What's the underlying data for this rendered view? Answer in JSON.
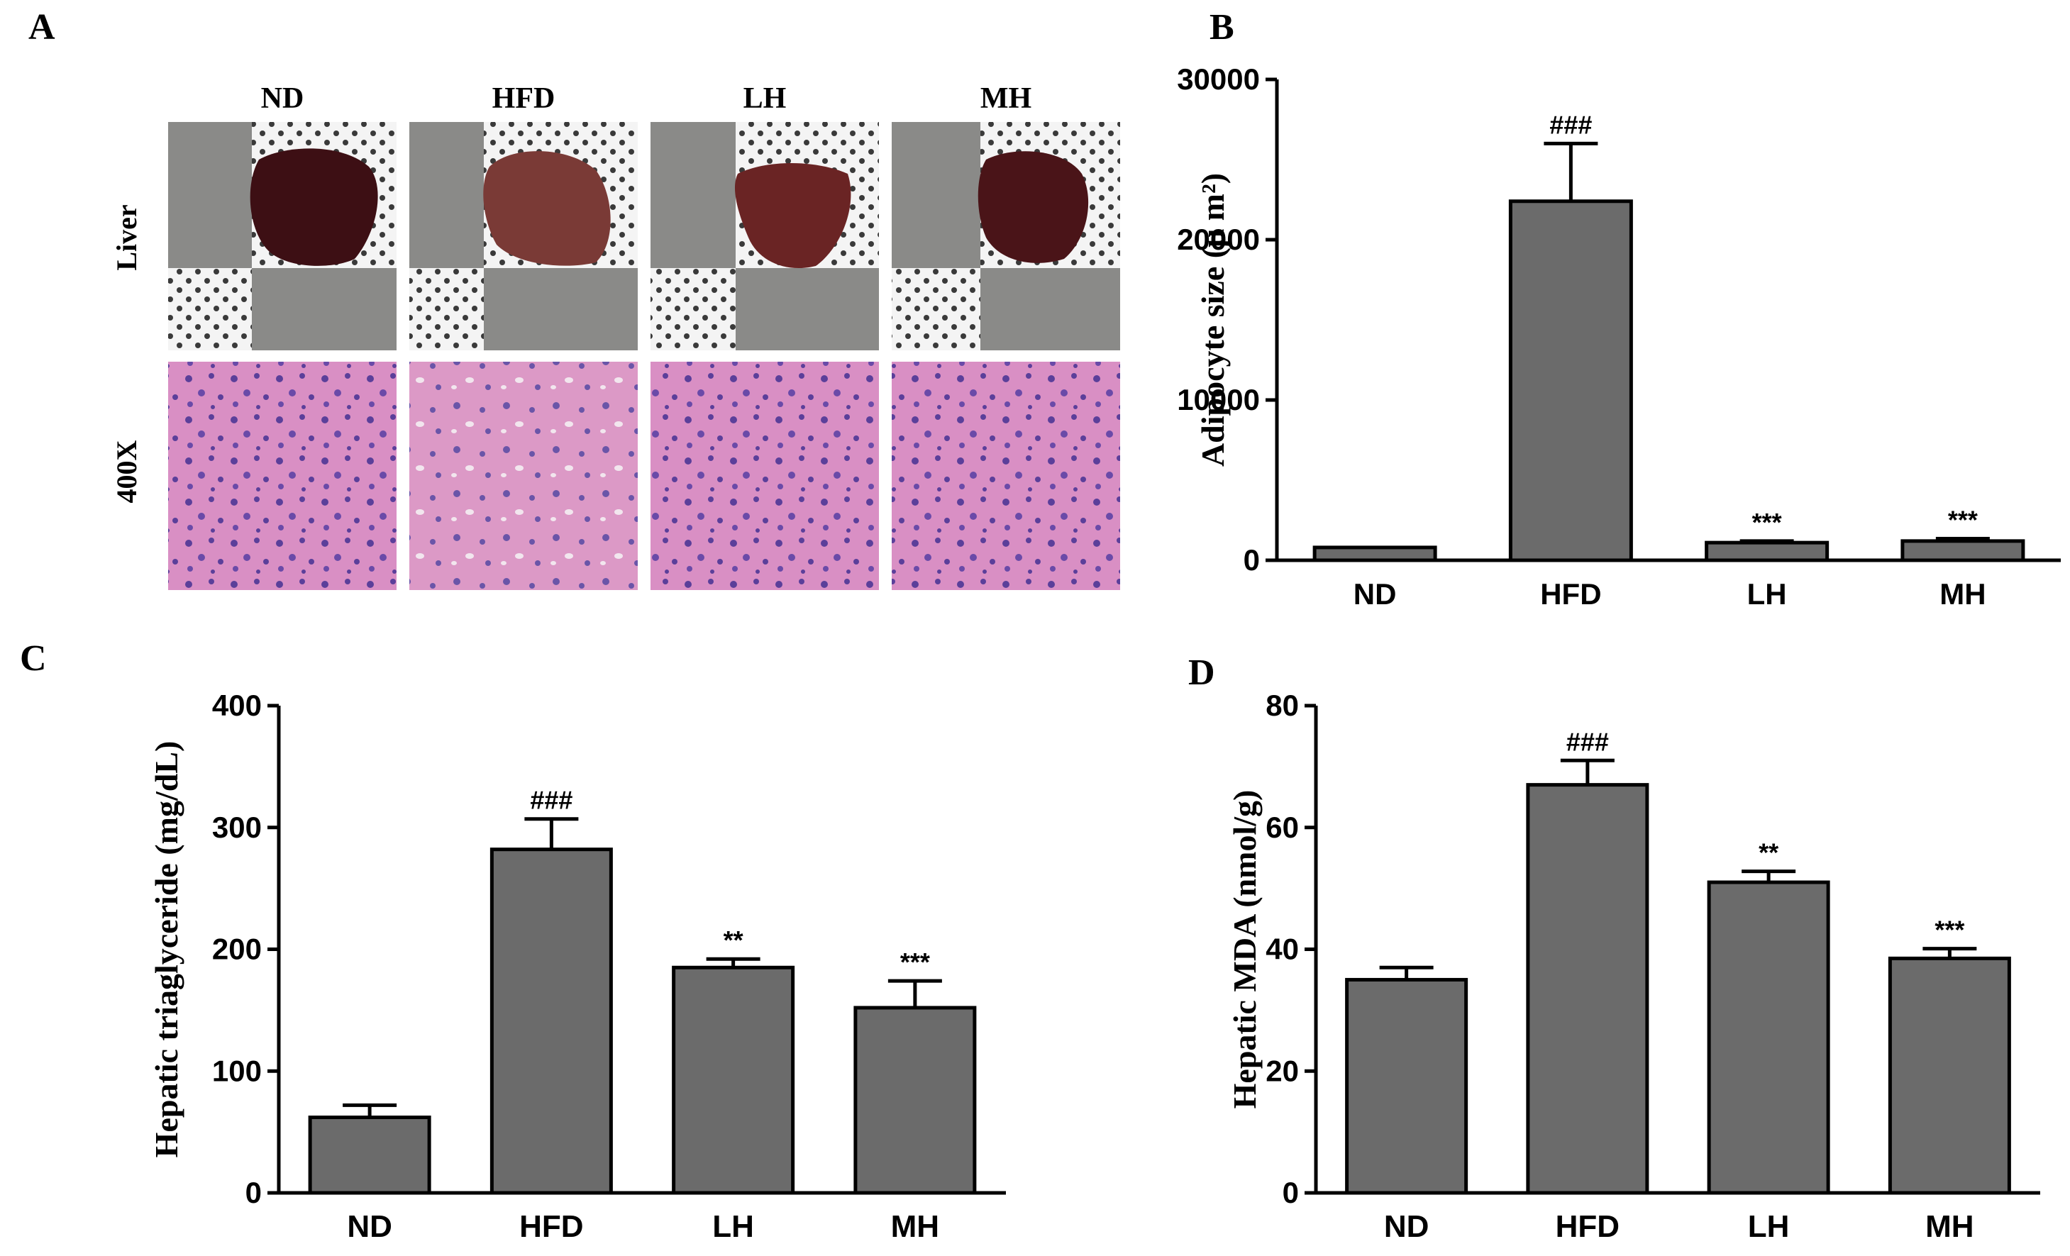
{
  "panel_a": {
    "letter": "A",
    "groups": [
      "ND",
      "HFD",
      "LH",
      "MH"
    ],
    "row_labels": [
      "Liver",
      "400X"
    ],
    "colors": {
      "liver_nd": "#3d0f14",
      "liver_hfd": "#7a3a36",
      "liver_lh": "#6a2424",
      "liver_mh": "#4a1418",
      "tissue_bg": "#d98fc4",
      "nucleus": "#5b3f9a",
      "ruler": "#8a8a88"
    }
  },
  "chart_data": [
    {
      "panel": "B",
      "type": "bar",
      "categories": [
        "ND",
        "HFD",
        "LH",
        "MH"
      ],
      "values": [
        800,
        22400,
        1100,
        1200
      ],
      "errors": [
        0,
        3600,
        100,
        150
      ],
      "annotations": [
        "",
        "###",
        "***",
        "***"
      ],
      "ylabel": "Adipocyte size (μ m²)",
      "ylim": [
        0,
        30000
      ],
      "yticks": [
        0,
        10000,
        20000,
        30000
      ],
      "bar_color": "#6b6b6b"
    },
    {
      "panel": "C",
      "type": "bar",
      "categories": [
        "ND",
        "HFD",
        "LH",
        "MH"
      ],
      "values": [
        62,
        282,
        185,
        152
      ],
      "errors": [
        10,
        25,
        7,
        22
      ],
      "annotations": [
        "",
        "###",
        "**",
        "***"
      ],
      "ylabel": "Hepatic triaglyceride (mg/dL)",
      "ylim": [
        0,
        400
      ],
      "yticks": [
        0,
        100,
        200,
        300,
        400
      ],
      "bar_color": "#6b6b6b"
    },
    {
      "panel": "D",
      "type": "bar",
      "categories": [
        "ND",
        "HFD",
        "LH",
        "MH"
      ],
      "values": [
        35,
        67,
        51,
        38.5
      ],
      "errors": [
        2,
        4,
        1.8,
        1.6
      ],
      "annotations": [
        "",
        "###",
        "**",
        "***"
      ],
      "ylabel": "Hepatic MDA (nmol/g)",
      "ylim": [
        0,
        80
      ],
      "yticks": [
        0,
        20,
        40,
        60,
        80
      ],
      "bar_color": "#6b6b6b"
    }
  ]
}
